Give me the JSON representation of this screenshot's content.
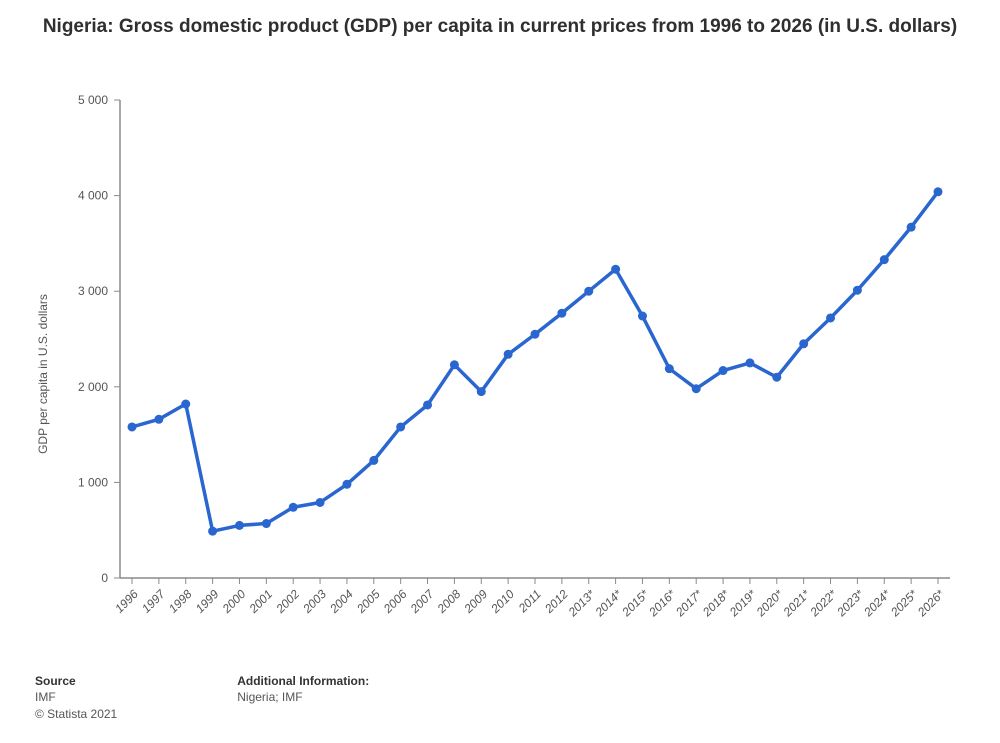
{
  "chart": {
    "type": "line",
    "title": "Nigeria: Gross domestic product (GDP) per capita in current prices from 1996 to 2026 (in U.S. dollars)",
    "title_fontsize": 19,
    "title_fontweight": "bold",
    "y_axis_label": "GDP per capita in U.S. dollars",
    "y_axis_label_fontsize": 12,
    "y_axis_label_color": "#555555",
    "background_color": "#ffffff",
    "line_color": "#2a66cf",
    "line_width": 3.5,
    "marker_color": "#2a66cf",
    "marker_radius": 4.5,
    "axis_color": "#8a8a8a",
    "gridline_color": "#8a8a8a",
    "tick_label_color": "#555555",
    "tick_label_fontsize": 12,
    "x_tick_label_fontsize": 12,
    "x_tick_rotation_deg": -45,
    "ymin": 0,
    "ymax": 5000,
    "ytick_step": 1000,
    "y_tick_format_thousands_space": true,
    "categories": [
      "1996",
      "1997",
      "1998",
      "1999",
      "2000",
      "2001",
      "2002",
      "2003",
      "2004",
      "2005",
      "2006",
      "2007",
      "2008",
      "2009",
      "2010",
      "2011",
      "2012",
      "2013*",
      "2014*",
      "2015*",
      "2016*",
      "2017*",
      "2018*",
      "2019*",
      "2020*",
      "2021*",
      "2022*",
      "2023*",
      "2024*",
      "2025*",
      "2026*"
    ],
    "values": [
      1580,
      1660,
      1820,
      490,
      550,
      570,
      740,
      790,
      980,
      1230,
      1580,
      1810,
      2230,
      1950,
      2340,
      2550,
      2770,
      3000,
      3230,
      2740,
      2190,
      1980,
      2170,
      2250,
      2100,
      2450,
      2720,
      3010,
      3330,
      3670,
      4040
    ]
  },
  "footer": {
    "source_heading": "Source",
    "source_text": "IMF",
    "copyright": "© Statista 2021",
    "additional_heading": "Additional Information:",
    "additional_text": "Nigeria; IMF",
    "font_size": 12
  }
}
